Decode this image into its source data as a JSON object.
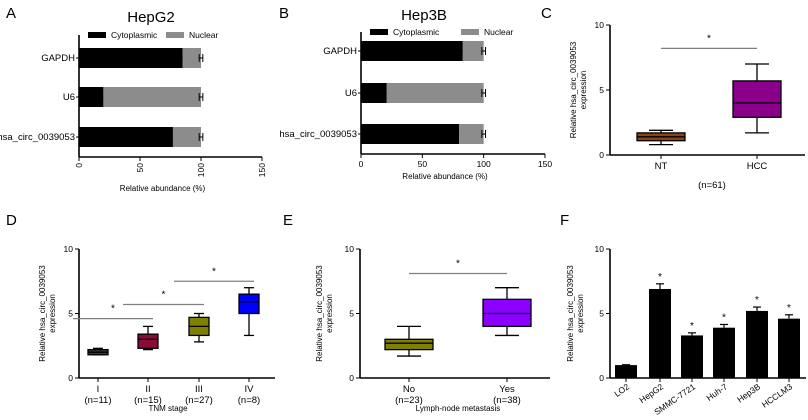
{
  "figure": {
    "panel_labels": [
      "A",
      "B",
      "C",
      "D",
      "E",
      "F"
    ]
  },
  "chart_data": [
    {
      "panel": "A",
      "type": "bar",
      "orientation": "horizontal",
      "stacked": true,
      "title": "HepG2",
      "categories": [
        "GAPDH",
        "U6",
        "hsa_circ_0039053"
      ],
      "series": [
        {
          "name": "Cytoplasmic",
          "color": "#000000",
          "values": [
            85,
            20,
            77
          ],
          "errors": [
            2,
            1.5,
            2
          ]
        },
        {
          "name": "Nuclear",
          "color": "#8c8c8c",
          "values": [
            15,
            80,
            23
          ],
          "errors": [
            1.5,
            1.5,
            1.5
          ]
        }
      ],
      "xlabel": "Relative abundance (%)",
      "ylabel": "",
      "xlim": [
        0,
        150
      ],
      "xticks": [
        "0",
        "50",
        "100",
        "150"
      ],
      "xtick_rotation": "vertical",
      "legend": "top"
    },
    {
      "panel": "B",
      "type": "bar",
      "orientation": "horizontal",
      "stacked": true,
      "title": "Hep3B",
      "categories": [
        "GAPDH",
        "U6",
        "hsa_circ_0039053"
      ],
      "series": [
        {
          "name": "Cytoplasmic",
          "color": "#000000",
          "values": [
            83,
            21,
            80
          ],
          "errors": [
            2,
            1.5,
            2
          ]
        },
        {
          "name": "Nuclear",
          "color": "#8c8c8c",
          "values": [
            17,
            79,
            20
          ],
          "errors": [
            1.5,
            1.5,
            1.5
          ]
        }
      ],
      "xlabel": "Relative abundance (%)",
      "ylabel": "",
      "xlim": [
        0,
        150
      ],
      "xticks": [
        "0",
        "50",
        "100",
        "150"
      ],
      "legend": "top"
    },
    {
      "panel": "C",
      "type": "box",
      "title": "",
      "categories": [
        "NT",
        "HCC"
      ],
      "boxes": [
        {
          "label": "NT",
          "color": "#8b4513",
          "min": 0.8,
          "q1": 1.1,
          "median": 1.4,
          "q3": 1.7,
          "max": 1.9
        },
        {
          "label": "HCC",
          "color": "#8b008b",
          "min": 1.7,
          "q1": 2.9,
          "median": 4.0,
          "q3": 5.7,
          "max": 7.0
        }
      ],
      "xlabel": "(n=61)",
      "ylabel": "Relative hsa_circ_0039053 expression",
      "ylim": [
        0,
        10
      ],
      "yticks": [
        "0",
        "5",
        "10"
      ],
      "significance": [
        {
          "from": "NT",
          "to": "HCC",
          "y": 8.2,
          "mark": "*"
        }
      ]
    },
    {
      "panel": "D",
      "type": "box",
      "title": "",
      "categories": [
        "I\n(n=11)",
        "II\n(n=15)",
        "III\n(n=27)",
        "IV\n(n=8)"
      ],
      "boxes": [
        {
          "label": "I",
          "n": "(n=11)",
          "color": "#3a3a3a",
          "min": 1.8,
          "q1": 1.8,
          "median": 2.0,
          "q3": 2.2,
          "max": 2.3
        },
        {
          "label": "II",
          "n": "(n=15)",
          "color": "#8b0a3c",
          "min": 2.2,
          "q1": 2.3,
          "median": 3.0,
          "q3": 3.4,
          "max": 4.0
        },
        {
          "label": "III",
          "n": "(n=27)",
          "color": "#808000",
          "min": 2.8,
          "q1": 3.3,
          "median": 4.0,
          "q3": 4.7,
          "max": 5.0
        },
        {
          "label": "IV",
          "n": "(n=8)",
          "color": "#0000ff",
          "min": 3.3,
          "q1": 5.0,
          "median": 5.9,
          "q3": 6.5,
          "max": 7.0
        }
      ],
      "xlabel": "TNM stage",
      "ylabel": "Relative hsa_circ_0039053 expression",
      "ylim": [
        0,
        10
      ],
      "yticks": [
        "0",
        "5",
        "10"
      ],
      "significance": [
        {
          "from": "I",
          "to": "II",
          "y": 4.6,
          "mark": "*"
        },
        {
          "from": "II",
          "to": "III",
          "y": 5.7,
          "mark": "*"
        },
        {
          "from": "III",
          "to": "IV",
          "y": 7.5,
          "mark": "*"
        }
      ]
    },
    {
      "panel": "E",
      "type": "box",
      "title": "",
      "categories": [
        "No\n(n=23)",
        "Yes\n(n=38)"
      ],
      "boxes": [
        {
          "label": "No",
          "n": "(n=23)",
          "color": "#808000",
          "min": 1.7,
          "q1": 2.2,
          "median": 2.7,
          "q3": 3.0,
          "max": 4.0
        },
        {
          "label": "Yes",
          "n": "(n=38)",
          "color": "#8b00ff",
          "min": 3.3,
          "q1": 4.0,
          "median": 5.0,
          "q3": 6.1,
          "max": 7.0
        }
      ],
      "xlabel": "Lymph-node metastasis",
      "ylabel": "Relative hsa_circ_0039053 expression",
      "ylim": [
        0,
        10
      ],
      "yticks": [
        "0",
        "5",
        "10"
      ],
      "significance": [
        {
          "from": "No",
          "to": "Yes",
          "y": 8.1,
          "mark": "*"
        }
      ]
    },
    {
      "panel": "F",
      "type": "bar",
      "title": "",
      "categories": [
        "LO2",
        "HepG2",
        "SMMC-7721",
        "Huh-7",
        "Hep3B",
        "HCCLM3"
      ],
      "values": [
        1.0,
        6.9,
        3.3,
        3.9,
        5.2,
        4.6
      ],
      "errors": [
        0.03,
        0.4,
        0.2,
        0.25,
        0.3,
        0.3
      ],
      "stars": [
        "",
        "*",
        "*",
        "*",
        "*",
        "*"
      ],
      "color": "#000000",
      "xlabel": "",
      "ylabel": "Relative hsa_circ_0039053 expression",
      "ylim": [
        0,
        10
      ],
      "yticks": [
        "0",
        "5",
        "10"
      ],
      "xtick_rotation": "diagonal"
    }
  ]
}
